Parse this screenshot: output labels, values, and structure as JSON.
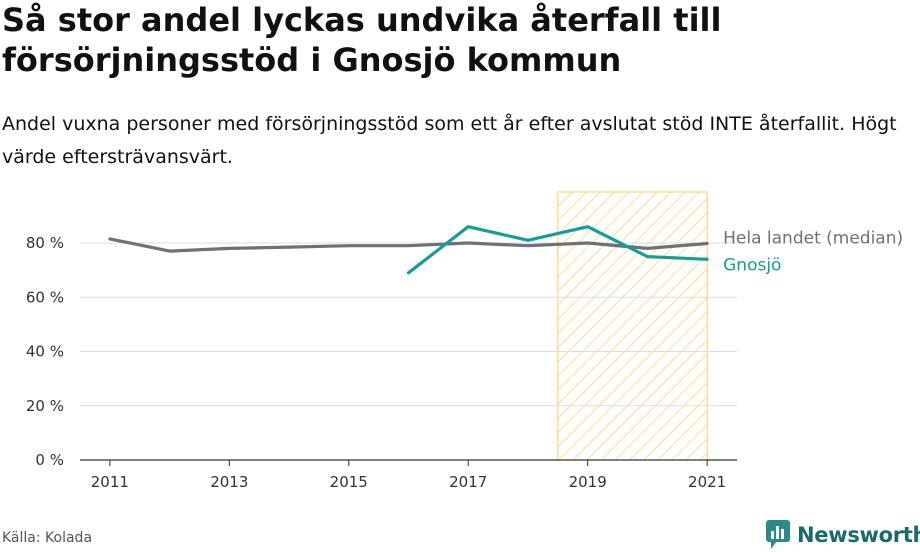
{
  "header": {
    "title": "Så stor andel lyckas undvika återfall till försörjningsstöd i Gnosjö kommun",
    "subtitle": "Andel vuxna personer med försörjningsstöd som ett år efter avslutat stöd INTE återfallit. Högt värde eftersträvansvärt."
  },
  "footer": {
    "source": "Källa: Kolada",
    "brand": "Newsworthy",
    "brand_icon": "chart-bubble-icon"
  },
  "colors": {
    "national": "#717075",
    "gnosjo": "#159e96",
    "highlight": "#f9cf5c",
    "grid": "#dddddd",
    "brand": "#1a6a6a"
  },
  "chart_data": {
    "type": "line",
    "x": [
      2011,
      2012,
      2013,
      2014,
      2015,
      2016,
      2017,
      2018,
      2019,
      2020,
      2021
    ],
    "series": [
      {
        "name": "Hela landet (median)",
        "color": "#717075",
        "values": [
          81.5,
          77,
          78,
          78.5,
          79,
          79,
          80,
          79,
          80,
          78,
          79.8
        ]
      },
      {
        "name": "Gnosjö",
        "color": "#159e96",
        "values": [
          null,
          null,
          null,
          null,
          null,
          69,
          86,
          81,
          86,
          75,
          74
        ]
      }
    ],
    "highlight_range": [
      2018.5,
      2021
    ],
    "xlim": [
      2010.5,
      2021.5
    ],
    "ylim": [
      0,
      100
    ],
    "x_ticks": [
      2011,
      2013,
      2015,
      2017,
      2019,
      2021
    ],
    "y_ticks": [
      0,
      20,
      40,
      60,
      80
    ],
    "y_tick_labels": [
      "0 %",
      "20 %",
      "40 %",
      "60 %",
      "80 %"
    ],
    "grid": true,
    "legend": "inline-right"
  }
}
